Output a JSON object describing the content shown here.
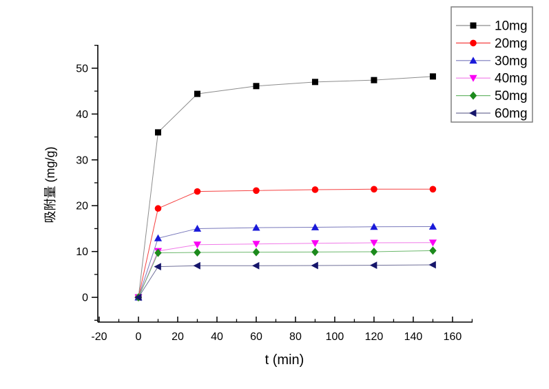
{
  "figure": {
    "background": "#ffffff",
    "axis_color": "#000000",
    "legend_border_color": "#7f7f7f"
  },
  "chart_data": {
    "type": "line",
    "title": "",
    "xlabel": "t (min)",
    "ylabel": "吸附量 (mg/g)",
    "grid": false,
    "x": [
      0,
      10,
      30,
      60,
      90,
      120,
      150
    ],
    "series": [
      {
        "name": "10mg",
        "marker": "square",
        "marker_color": "#000000",
        "line_color": "#8c8c8c",
        "values": [
          0,
          36.0,
          44.4,
          46.1,
          47.0,
          47.4,
          48.2
        ]
      },
      {
        "name": "20mg",
        "marker": "circle",
        "marker_color": "#ff0000",
        "line_color": "#f54040",
        "values": [
          0,
          19.4,
          23.1,
          23.3,
          23.5,
          23.6,
          23.6
        ]
      },
      {
        "name": "30mg",
        "marker": "triangle-up",
        "marker_color": "#1a1ad9",
        "line_color": "#7878bb",
        "values": [
          0,
          12.9,
          15.0,
          15.2,
          15.3,
          15.4,
          15.45
        ]
      },
      {
        "name": "40mg",
        "marker": "triangle-down",
        "marker_color": "#fb00f5",
        "line_color": "#f07ae8",
        "values": [
          0,
          10.1,
          11.5,
          11.65,
          11.8,
          11.9,
          11.95
        ]
      },
      {
        "name": "50mg",
        "marker": "diamond",
        "marker_color": "#1c8a1c",
        "line_color": "#6cb86c",
        "values": [
          0,
          9.7,
          9.8,
          9.85,
          9.9,
          9.95,
          10.2
        ]
      },
      {
        "name": "60mg",
        "marker": "triangle-left",
        "marker_color": "#16166b",
        "line_color": "#707099",
        "values": [
          0,
          6.7,
          6.9,
          6.9,
          6.95,
          7.0,
          7.1
        ]
      }
    ],
    "x_ticks": [
      -20,
      0,
      20,
      40,
      60,
      80,
      100,
      120,
      140,
      160
    ],
    "x_minor_ticks": [
      -10,
      10,
      30,
      50,
      70,
      90,
      110,
      130,
      150,
      170
    ],
    "y_ticks": [
      0,
      10,
      20,
      30,
      40,
      50
    ],
    "y_minor_ticks": [
      -5,
      5,
      15,
      25,
      35,
      45,
      55
    ],
    "xlim": [
      -20.7,
      170.2
    ],
    "ylim": [
      -5.4,
      55.1
    ],
    "legend": {
      "position": "top-right",
      "labels": [
        "10mg",
        "20mg",
        "30mg",
        "40mg",
        "50mg",
        "60mg"
      ]
    }
  }
}
